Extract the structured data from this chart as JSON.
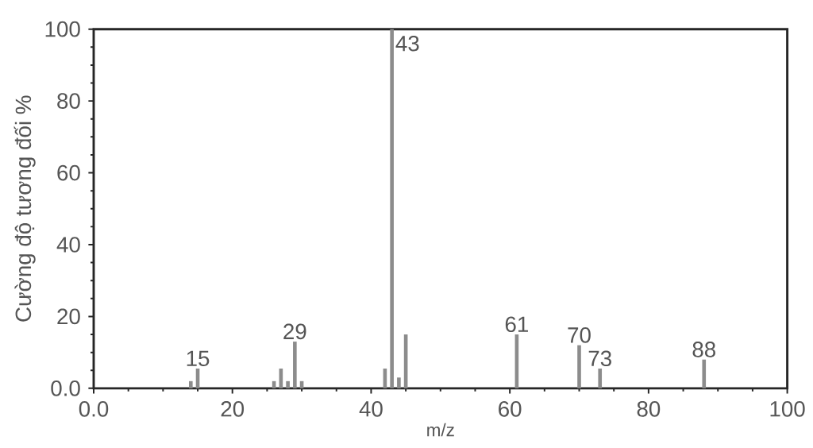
{
  "chart_data": {
    "type": "bar",
    "xlabel": "m/z",
    "ylabel": "Cường độ tương đối %",
    "color": "#8c8c8c",
    "x": [
      14,
      15,
      26,
      27,
      28,
      29,
      30,
      42,
      43,
      44,
      45,
      61,
      70,
      73,
      88
    ],
    "values": [
      2,
      5.5,
      2,
      5.5,
      2,
      13,
      2,
      5.5,
      100,
      3,
      15,
      15,
      12,
      5.5,
      8
    ],
    "xlim": [
      0,
      100
    ],
    "ylim": [
      0,
      100
    ],
    "xticks": [
      {
        "value": 0,
        "label": "0.0"
      },
      20,
      40,
      60,
      80,
      100
    ],
    "yticks": [
      {
        "value": 0,
        "label": "0.0"
      },
      20,
      40,
      60,
      80,
      100
    ],
    "annotations": [
      {
        "text": "15",
        "x": 15,
        "y": 5.5
      },
      {
        "text": "29",
        "x": 29,
        "y": 13
      },
      {
        "text": "43",
        "x": 43,
        "y": 100
      },
      {
        "text": "61",
        "x": 61,
        "y": 15
      },
      {
        "text": "70",
        "x": 70,
        "y": 12
      },
      {
        "text": "73",
        "x": 73,
        "y": 5.5
      },
      {
        "text": "88",
        "x": 88,
        "y": 8
      }
    ]
  }
}
